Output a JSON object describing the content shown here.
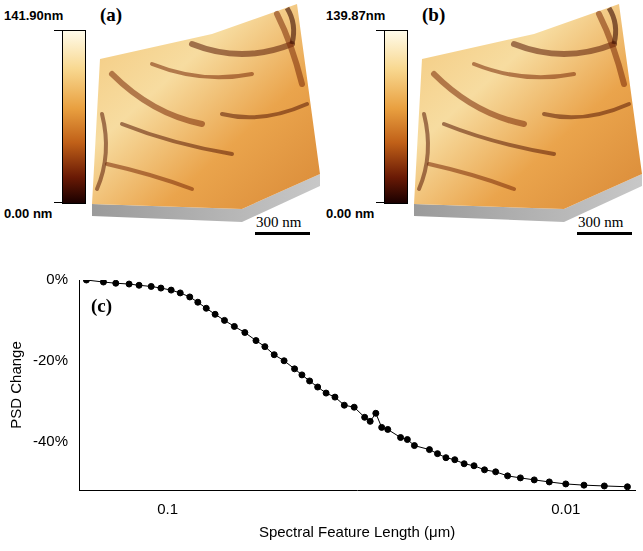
{
  "chart_data": [
    {
      "type": "image",
      "panel": "(a)",
      "colorbar": {
        "range": [
          0,
          141.9
        ],
        "ticks": [
          {
            "value": 0,
            "label": "0.00 nm"
          },
          {
            "value": 141.9,
            "label": "141.90nm"
          }
        ]
      },
      "scale_bar": {
        "value": 300,
        "label": "300 nm"
      }
    },
    {
      "type": "image",
      "panel": "(b)",
      "colorbar": {
        "range": [
          0,
          139.87
        ],
        "ticks": [
          {
            "value": 0,
            "label": "0.00 nm"
          },
          {
            "value": 139.87,
            "label": "139.87nm"
          }
        ]
      },
      "scale_bar": {
        "value": 300,
        "label": "300 nm"
      }
    },
    {
      "type": "line",
      "panel": "(c)",
      "x_label": "Spectral Feature Length (μm)",
      "y_label": "PSD Change",
      "x": [
        0.16,
        0.145,
        0.135,
        0.125,
        0.118,
        0.11,
        0.104,
        0.098,
        0.093,
        0.088,
        0.084,
        0.08,
        0.076,
        0.072,
        0.068,
        0.064,
        0.06,
        0.057,
        0.054,
        0.051,
        0.048,
        0.046,
        0.044,
        0.042,
        0.04,
        0.038,
        0.036,
        0.034,
        0.032,
        0.031,
        0.03,
        0.029,
        0.028,
        0.026,
        0.025,
        0.024,
        0.022,
        0.021,
        0.02,
        0.019,
        0.018,
        0.017,
        0.016,
        0.015,
        0.014,
        0.013,
        0.012,
        0.011,
        0.01,
        0.009,
        0.008,
        0.007
      ],
      "values": [
        0,
        -0.5,
        -0.8,
        -1,
        -1.3,
        -1.6,
        -2,
        -2.5,
        -3.2,
        -4.2,
        -5.5,
        -7,
        -8.5,
        -10,
        -11.5,
        -13,
        -15,
        -16.5,
        -18.5,
        -20,
        -22,
        -23.5,
        -25,
        -26.5,
        -28,
        -29,
        -31,
        -31.5,
        -34,
        -35,
        -33,
        -36.5,
        -37,
        -39,
        -39.5,
        -41,
        -42,
        -43,
        -44,
        -44.5,
        -45.5,
        -46,
        -47,
        -47.5,
        -48.5,
        -49,
        -49.5,
        -50,
        -50.5,
        -50.8,
        -51,
        -51.2
      ],
      "log": "x",
      "xlim": [
        0.167,
        0.0067
      ],
      "xticks": [
        0.1,
        0.01
      ],
      "ylim": [
        -52,
        0
      ],
      "yticks": [
        {
          "value": 0,
          "label": "0%"
        },
        {
          "value": -20,
          "label": "-20%"
        },
        {
          "value": -40,
          "label": "-40%"
        }
      ],
      "color": "#000000",
      "marker": "circle",
      "line_style": "solid",
      "grid": false
    }
  ]
}
